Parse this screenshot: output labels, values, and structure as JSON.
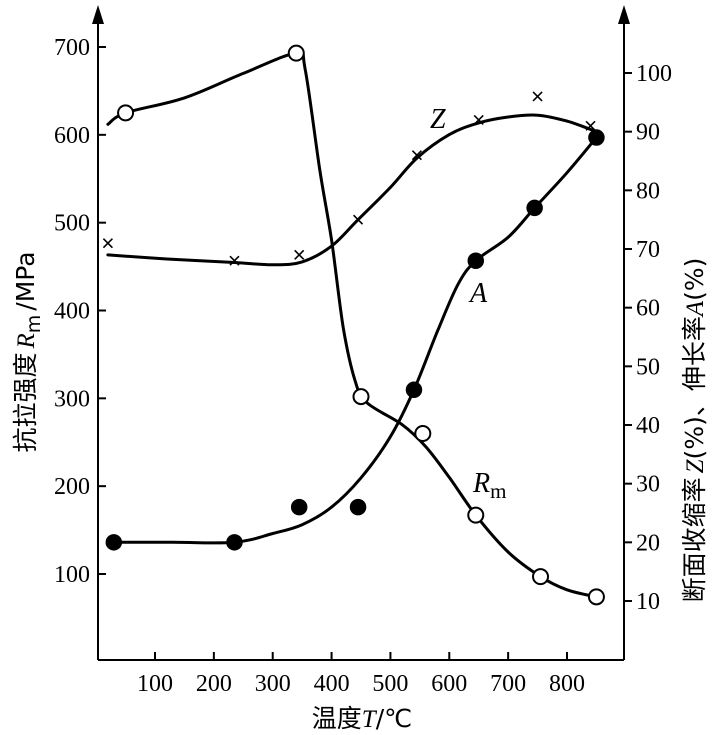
{
  "chart_data": {
    "type": "line",
    "xlabel": "温度T/℃",
    "ylabel_left": "抗拉强度 Rm /MPa",
    "ylabel_right": "断面收缩率 Z(%)、伸长率A(%)",
    "xlim": [
      20,
      890
    ],
    "ylim_left": [
      50,
      750
    ],
    "ylim_right": [
      5,
      110
    ],
    "x_ticks": [
      "100",
      "200",
      "300",
      "400",
      "500",
      "600",
      "700",
      "800"
    ],
    "y_ticks_left": [
      "100",
      "200",
      "300",
      "400",
      "500",
      "600",
      "700"
    ],
    "y_ticks_right": [
      "10",
      "20",
      "30",
      "40",
      "50",
      "60",
      "70",
      "80",
      "90",
      "100"
    ],
    "series": [
      {
        "name": "Rm",
        "axis": "left",
        "marker": "open-circle",
        "points": [
          [
            50,
            625
          ],
          [
            340,
            693
          ],
          [
            450,
            302
          ],
          [
            555,
            260
          ],
          [
            645,
            167
          ],
          [
            755,
            97
          ],
          [
            850,
            74
          ]
        ],
        "curve": [
          [
            20,
            612
          ],
          [
            50,
            625
          ],
          [
            150,
            642
          ],
          [
            250,
            670
          ],
          [
            340,
            693
          ],
          [
            355,
            675
          ],
          [
            380,
            560
          ],
          [
            400,
            480
          ],
          [
            420,
            380
          ],
          [
            440,
            320
          ],
          [
            460,
            295
          ],
          [
            520,
            270
          ],
          [
            560,
            245
          ],
          [
            600,
            210
          ],
          [
            645,
            167
          ],
          [
            700,
            125
          ],
          [
            755,
            97
          ],
          [
            800,
            82
          ],
          [
            850,
            74
          ]
        ]
      },
      {
        "name": "Z",
        "axis": "right",
        "marker": "cross",
        "points": [
          [
            20,
            71
          ],
          [
            235,
            68
          ],
          [
            345,
            69
          ],
          [
            445,
            75
          ],
          [
            545,
            86
          ],
          [
            650,
            92
          ],
          [
            750,
            96
          ],
          [
            840,
            91
          ]
        ],
        "curve": [
          [
            20,
            69
          ],
          [
            120,
            68.3
          ],
          [
            235,
            67.7
          ],
          [
            300,
            67.3
          ],
          [
            350,
            67.8
          ],
          [
            400,
            70.5
          ],
          [
            445,
            75
          ],
          [
            500,
            80.5
          ],
          [
            545,
            85.5
          ],
          [
            600,
            89.5
          ],
          [
            650,
            91.5
          ],
          [
            700,
            92.5
          ],
          [
            750,
            92.8
          ],
          [
            800,
            91.8
          ],
          [
            850,
            90
          ]
        ]
      },
      {
        "name": "A",
        "axis": "right",
        "marker": "filled-circle",
        "points": [
          [
            30,
            20
          ],
          [
            235,
            20
          ],
          [
            345,
            26
          ],
          [
            445,
            26
          ],
          [
            540,
            46
          ],
          [
            645,
            68
          ],
          [
            745,
            77
          ],
          [
            850,
            89
          ]
        ],
        "curve": [
          [
            30,
            20
          ],
          [
            130,
            20
          ],
          [
            235,
            20
          ],
          [
            300,
            21.5
          ],
          [
            350,
            23
          ],
          [
            400,
            26
          ],
          [
            450,
            31
          ],
          [
            500,
            38
          ],
          [
            540,
            46
          ],
          [
            580,
            56
          ],
          [
            615,
            64
          ],
          [
            645,
            68
          ],
          [
            700,
            72
          ],
          [
            745,
            77
          ],
          [
            800,
            83
          ],
          [
            850,
            89
          ]
        ]
      }
    ],
    "series_labels": {
      "Rm_main": "R",
      "Rm_sub": "m",
      "Z": "Z",
      "A": "A"
    },
    "ylabel_left_parts": {
      "prefix": "抗拉强度",
      "var": "R",
      "sub": "m",
      "suffix": "/MPa"
    },
    "ylabel_right_parts": {
      "prefix": "断面收缩率",
      "z": "Z",
      "mid": "(%)、伸长率",
      "a": "A",
      "suffix": "(%)"
    },
    "xlabel_parts": {
      "prefix": "温度",
      "var": "T",
      "suffix": "/℃"
    }
  }
}
